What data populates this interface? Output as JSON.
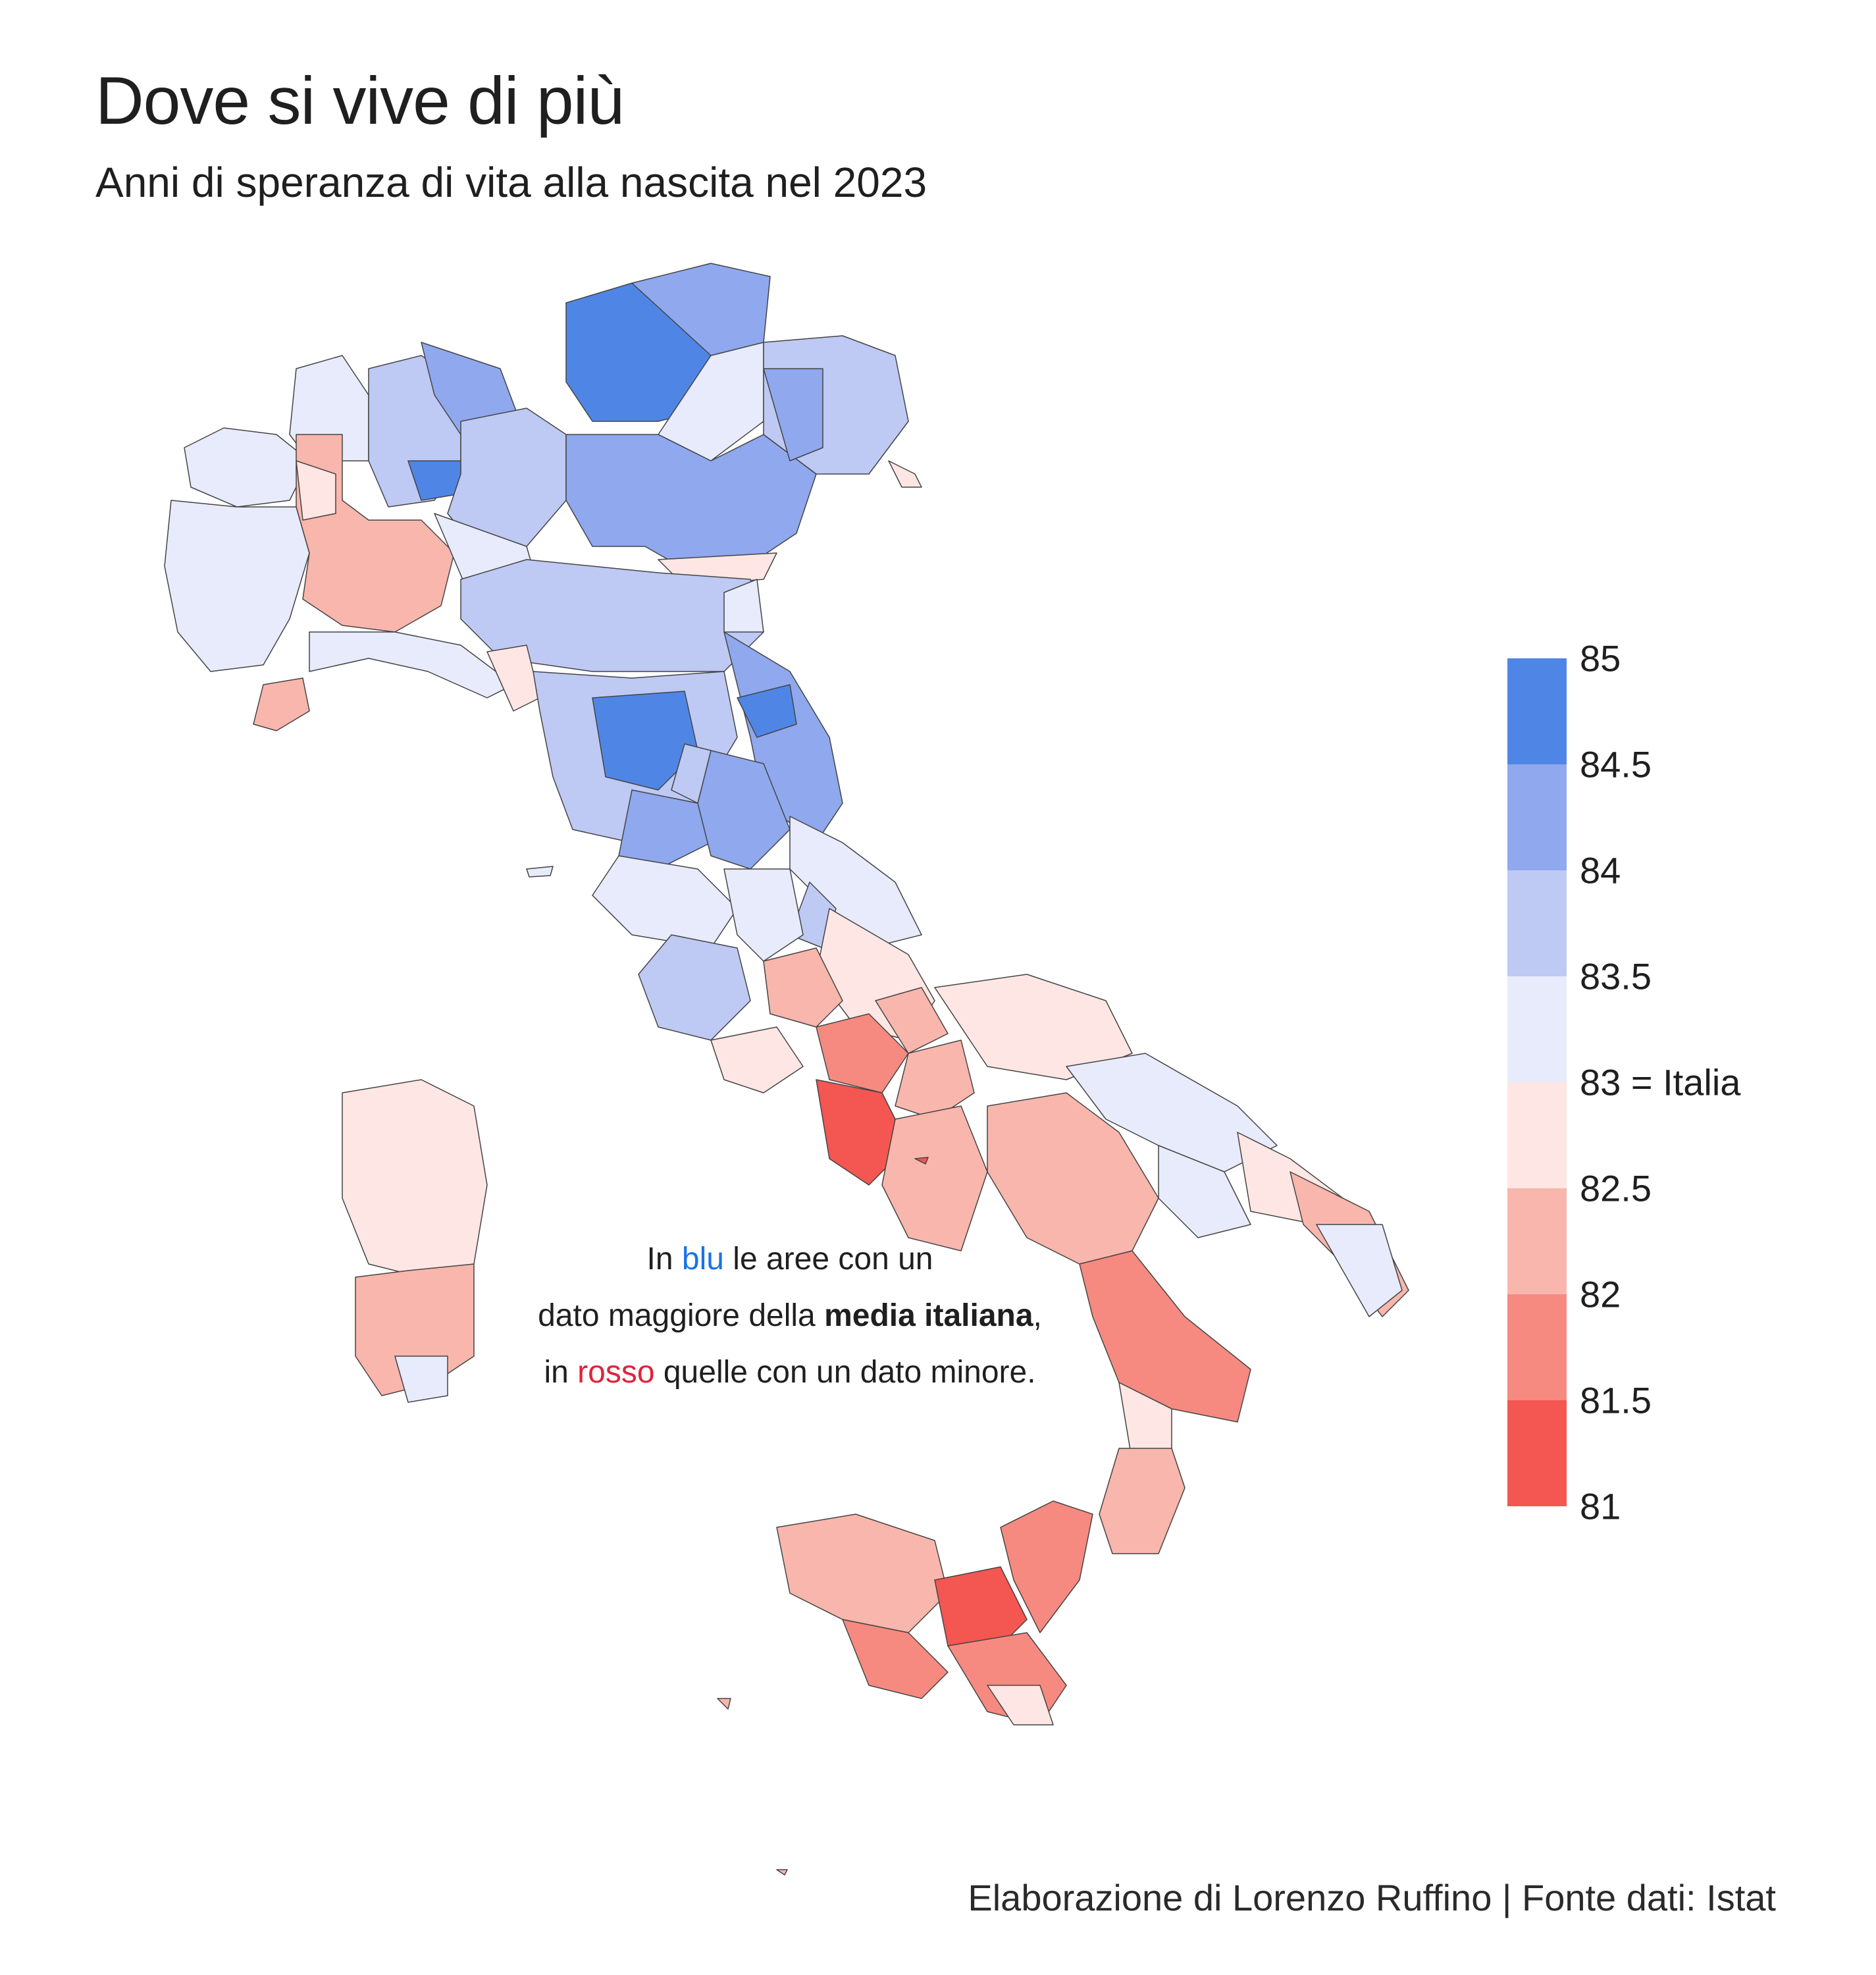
{
  "title": "Dove si vive di più",
  "subtitle": "Anni di speranza di vita alla nascita nel 2023",
  "annotation": {
    "line1_pre": "In ",
    "blu": "blu",
    "line1_post": " le aree con un",
    "line2_pre": "dato maggiore della ",
    "media": "media italiana",
    "line2_post": ",",
    "line3_pre": "in ",
    "rosso": "rosso",
    "line3_post": " quelle con un dato minore."
  },
  "legend": {
    "ticks": [
      "85",
      "84.5",
      "84",
      "83.5",
      "83 = Italia",
      "82.5",
      "82",
      "81.5",
      "81"
    ],
    "colors": [
      "#4f86e6",
      "#8fa8ee",
      "#bec9f4",
      "#e7ebfb",
      "#fde6e3",
      "#f9b6ad",
      "#f68a80",
      "#f45652"
    ]
  },
  "colors": {
    "blue_accent": "#1a73e8",
    "red_accent": "#e0223c"
  },
  "footer": "Elaborazione di Lorenzo Ruffino | Fonte dati: Istat"
}
